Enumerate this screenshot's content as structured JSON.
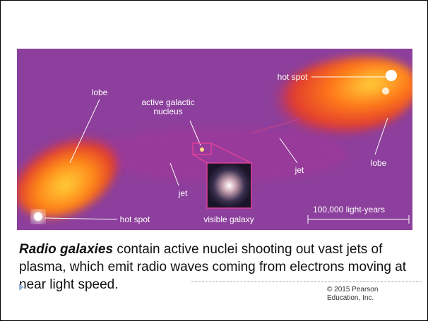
{
  "figure": {
    "labels": {
      "lobe_left": "lobe",
      "agn": [
        "active galactic",
        "nucleus"
      ],
      "hot_spot_right": "hot spot",
      "lobe_right": "lobe",
      "jet_right": "jet",
      "jet_left": "jet",
      "hot_spot_left": "hot spot",
      "visible_galaxy": "visible galaxy",
      "scale": "100,000 light-years"
    }
  },
  "caption": {
    "emphasis": "Radio galaxies",
    "text": "contain active nuclei shooting out vast jets of plasma, which emit radio waves coming from electrons moving at near light speed."
  },
  "footer": {
    "copyright": "© 2015 Pearson Education, Inc."
  }
}
